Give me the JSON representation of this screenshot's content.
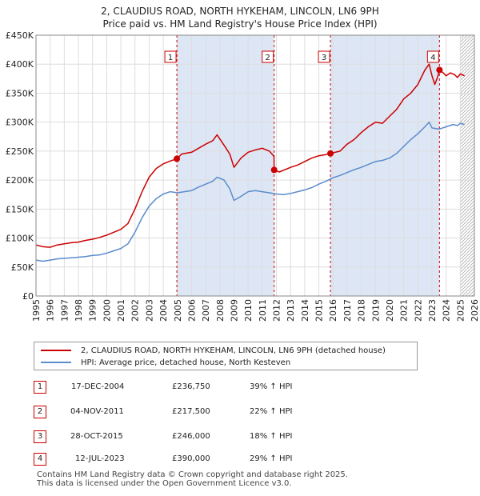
{
  "title_line1": "2, CLAUDIUS ROAD, NORTH HYKEHAM, LINCOLN, LN6 9PH",
  "title_line2": "Price paid vs. HM Land Registry's House Price Index (HPI)",
  "legend": {
    "property_label": "2, CLAUDIUS ROAD, NORTH HYKEHAM, LINCOLN, LN6 9PH (detached house)",
    "hpi_label": "HPI: Average price, detached house, North Kesteven"
  },
  "colors": {
    "property": "#cc0000",
    "hpi": "#5b8ccc",
    "shade": "#dde6f5",
    "grid": "#dddddd",
    "hatch": "#aaaaaa"
  },
  "sales": [
    {
      "num": "1",
      "date": "17-DEC-2004",
      "price": "£236,750",
      "hpi_change": "39% ↑ HPI"
    },
    {
      "num": "2",
      "date": "04-NOV-2011",
      "price": "£217,500",
      "hpi_change": "22% ↑ HPI"
    },
    {
      "num": "3",
      "date": "28-OCT-2015",
      "price": "£246,000",
      "hpi_change": "18% ↑ HPI"
    },
    {
      "num": "4",
      "date": "12-JUL-2023",
      "price": "£390,000",
      "hpi_change": "29% ↑ HPI"
    }
  ],
  "footer_line1": "Contains HM Land Registry data © Crown copyright and database right 2025.",
  "footer_line2": "This data is licensed under the Open Government Licence v3.0.",
  "chart_data": {
    "type": "line",
    "xlim": [
      1995,
      2026
    ],
    "ylim": [
      0,
      450000
    ],
    "y_ticks": [
      {
        "value": 0,
        "label": "£0"
      },
      {
        "value": 50000,
        "label": "£50K"
      },
      {
        "value": 100000,
        "label": "£100K"
      },
      {
        "value": 150000,
        "label": "£150K"
      },
      {
        "value": 200000,
        "label": "£200K"
      },
      {
        "value": 250000,
        "label": "£250K"
      },
      {
        "value": 300000,
        "label": "£300K"
      },
      {
        "value": 350000,
        "label": "£350K"
      },
      {
        "value": 400000,
        "label": "£400K"
      },
      {
        "value": 450000,
        "label": "£450K"
      }
    ],
    "x_ticks": [
      "1995",
      "1996",
      "1997",
      "1998",
      "1999",
      "2000",
      "2001",
      "2002",
      "2003",
      "2004",
      "2005",
      "2006",
      "2007",
      "2008",
      "2009",
      "2010",
      "2011",
      "2012",
      "2013",
      "2014",
      "2015",
      "2016",
      "2017",
      "2018",
      "2019",
      "2020",
      "2021",
      "2022",
      "2023",
      "2024",
      "2025",
      "2026"
    ],
    "shaded_periods": [
      [
        2004.96,
        2011.84
      ],
      [
        2015.82,
        2023.53
      ]
    ],
    "future_from": 2025.0,
    "sale_markers": [
      {
        "label": "1",
        "x": 2004.96,
        "y": 236750
      },
      {
        "label": "2",
        "x": 2011.84,
        "y": 217500
      },
      {
        "label": "3",
        "x": 2015.82,
        "y": 246000
      },
      {
        "label": "4",
        "x": 2023.53,
        "y": 390000
      }
    ],
    "series": [
      {
        "name": "2, CLAUDIUS ROAD, NORTH HYKEHAM, LINCOLN, LN6 9PH (detached house)",
        "x": [
          1995.0,
          1995.5,
          1996.0,
          1996.5,
          1997.0,
          1997.5,
          1998.0,
          1998.5,
          1999.0,
          1999.5,
          2000.0,
          2000.5,
          2001.0,
          2001.5,
          2002.0,
          2002.5,
          2003.0,
          2003.5,
          2004.0,
          2004.5,
          2004.96,
          2005.3,
          2006.0,
          2006.5,
          2007.0,
          2007.5,
          2007.8,
          2008.3,
          2008.7,
          2009.0,
          2009.5,
          2010.0,
          2010.5,
          2011.0,
          2011.5,
          2011.83,
          2011.84,
          2012.2,
          2013.0,
          2013.5,
          2014.0,
          2014.5,
          2015.0,
          2015.5,
          2015.82,
          2016.5,
          2017.0,
          2017.5,
          2018.0,
          2018.5,
          2019.0,
          2019.5,
          2020.0,
          2020.5,
          2021.0,
          2021.5,
          2022.0,
          2022.5,
          2022.8,
          2023.0,
          2023.2,
          2023.4,
          2023.53,
          2023.8,
          2024.0,
          2024.3,
          2024.6,
          2024.8,
          2025.0,
          2025.3
        ],
        "values": [
          88000,
          85000,
          84000,
          88000,
          90000,
          92000,
          93000,
          96000,
          98000,
          101000,
          105000,
          110000,
          115000,
          125000,
          150000,
          180000,
          205000,
          220000,
          228000,
          233000,
          236750,
          245000,
          248000,
          255000,
          262000,
          268000,
          278000,
          260000,
          245000,
          222000,
          238000,
          248000,
          252000,
          255000,
          250000,
          241000,
          217500,
          214000,
          222000,
          226000,
          232000,
          238000,
          242000,
          244000,
          246000,
          250000,
          262000,
          270000,
          282000,
          292000,
          300000,
          298000,
          310000,
          322000,
          340000,
          350000,
          365000,
          390000,
          400000,
          380000,
          365000,
          378000,
          390000,
          385000,
          380000,
          385000,
          382000,
          377000,
          383000,
          380000
        ]
      },
      {
        "name": "HPI: Average price, detached house, North Kesteven",
        "x": [
          1995.0,
          1995.5,
          1996.0,
          1996.5,
          1997.0,
          1997.5,
          1998.0,
          1998.5,
          1999.0,
          1999.5,
          2000.0,
          2000.5,
          2001.0,
          2001.5,
          2002.0,
          2002.5,
          2003.0,
          2003.5,
          2004.0,
          2004.5,
          2005.0,
          2005.5,
          2006.0,
          2006.5,
          2007.0,
          2007.5,
          2007.8,
          2008.3,
          2008.7,
          2009.0,
          2009.5,
          2010.0,
          2010.5,
          2011.0,
          2011.5,
          2012.0,
          2012.5,
          2013.0,
          2013.5,
          2014.0,
          2014.5,
          2015.0,
          2015.5,
          2016.0,
          2016.5,
          2017.0,
          2017.5,
          2018.0,
          2018.5,
          2019.0,
          2019.5,
          2020.0,
          2020.5,
          2021.0,
          2021.5,
          2022.0,
          2022.5,
          2022.8,
          2023.0,
          2023.5,
          2024.0,
          2024.5,
          2024.8,
          2025.0,
          2025.3
        ],
        "values": [
          62000,
          60000,
          62000,
          64000,
          65000,
          66000,
          67000,
          68000,
          70000,
          71000,
          74000,
          78000,
          82000,
          90000,
          110000,
          135000,
          155000,
          168000,
          176000,
          180000,
          178000,
          180000,
          182000,
          188000,
          193000,
          198000,
          205000,
          200000,
          185000,
          165000,
          172000,
          180000,
          182000,
          180000,
          178000,
          176000,
          175000,
          177000,
          180000,
          183000,
          187000,
          193000,
          198000,
          204000,
          208000,
          213000,
          218000,
          222000,
          227000,
          232000,
          234000,
          238000,
          246000,
          258000,
          270000,
          280000,
          292000,
          300000,
          290000,
          288000,
          292000,
          296000,
          294000,
          298000,
          296000
        ]
      }
    ]
  }
}
